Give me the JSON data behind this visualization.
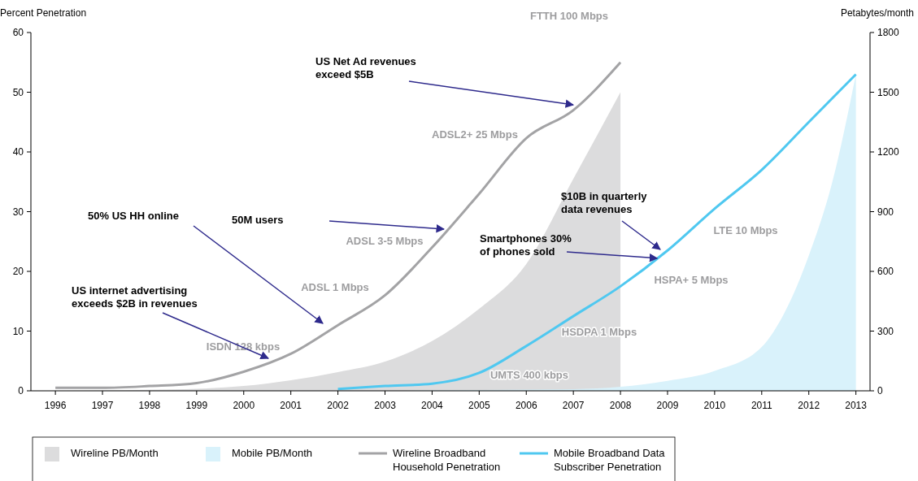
{
  "chart_data": {
    "type": "line",
    "ylabel": "Percent Penetration",
    "y2label": "Petabytes/month",
    "xlim": [
      1995.48,
      2013.3
    ],
    "xticks": [
      1996,
      1997,
      1998,
      1999,
      2000,
      2001,
      2002,
      2003,
      2004,
      2005,
      2006,
      2007,
      2008,
      2009,
      2010,
      2011,
      2012,
      2013
    ],
    "ylim": [
      0,
      60
    ],
    "yticks": [
      0,
      10,
      20,
      30,
      40,
      50,
      60
    ],
    "y2lim": [
      0,
      1800
    ],
    "y2ticks": [
      0,
      300,
      600,
      900,
      1200,
      1500,
      1800
    ],
    "series": [
      {
        "name": "Wireline PB/Month",
        "type": "area",
        "axis": "y2",
        "color": "#dcdcdd",
        "x": [
          1996,
          1997,
          1998,
          1999,
          2000,
          2001,
          2002,
          2003,
          2004,
          2005,
          2006,
          2007,
          2008
        ],
        "values": [
          0,
          2,
          5,
          10,
          24,
          53,
          94,
          147,
          250,
          412,
          637,
          1065,
          1500
        ]
      },
      {
        "name": "Mobile PB/Month",
        "type": "area",
        "axis": "y2",
        "color": "#d9f2fb",
        "x": [
          2002,
          2003,
          2004,
          2005,
          2006,
          2007,
          2008,
          2009,
          2010,
          2011,
          2011.5,
          2012,
          2012.5,
          2013
        ],
        "values": [
          0,
          0,
          2,
          4,
          6,
          8,
          20,
          50,
          100,
          220,
          400,
          680,
          1050,
          1590
        ]
      },
      {
        "name": "Wireline Broadband Household Penetration",
        "color": "#a3a3a5",
        "x": [
          1996,
          1997,
          1998,
          1999,
          2000,
          2001,
          2002,
          2003,
          2004,
          2005,
          2006,
          2007,
          2008
        ],
        "values": [
          0.5,
          0.5,
          0.8,
          1.3,
          3.2,
          6.2,
          11,
          16,
          24,
          33,
          42.3,
          47,
          55
        ]
      },
      {
        "name": "Mobile Broadband Data Subscriber Penetration",
        "color": "#4fc8f0",
        "x": [
          2002,
          2003,
          2004,
          2005,
          2006,
          2007,
          2008,
          2009,
          2010,
          2011,
          2012,
          2013
        ],
        "values": [
          0.3,
          0.8,
          1.2,
          3,
          7.5,
          12.5,
          17.5,
          23.5,
          30.5,
          37,
          45,
          53
        ]
      }
    ],
    "annotations": [
      "50% US HH online",
      "US internet advertising exceeds $2B in revenues",
      "US Net Ad revenues exceed $5B",
      "50M users",
      {
        "text": "Smartphones 30% of phones sold",
        "x": 2008.78,
        "y": 22.2
      },
      "$10B in quarterly data revenues",
      "FTTH 100 Mbps",
      "ADSL2+ 25 Mbps",
      "ADSL 3-5 Mbps",
      "ADSL 1 Mbps",
      "ISDN 128 kbps",
      "LTE 10 Mbps",
      "HSPA+ 5 Mbps",
      "HSDPA 1 Mbps",
      "UMTS 400 kbps"
    ],
    "legend": "bottom",
    "marker": "none",
    "line_style": "solid",
    "grid": false
  }
}
